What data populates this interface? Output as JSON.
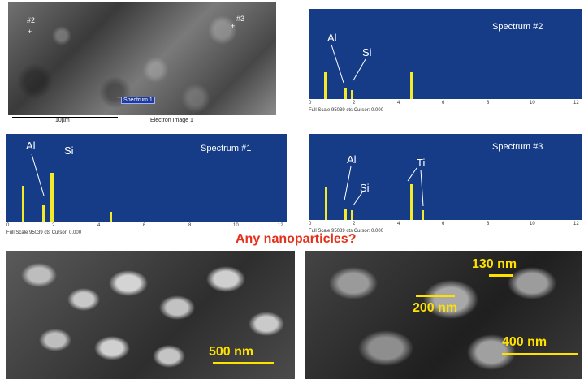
{
  "sem_overview": {
    "markers": [
      "#2",
      "#3"
    ],
    "spectrum_label": "Spectrum 1",
    "scale_label": "10µm",
    "footer_label": "Electron Image 1"
  },
  "spectra": [
    {
      "id": "spectrum-2",
      "title": "Spectrum #2",
      "elements": [
        "Al",
        "Si"
      ],
      "footer": "Full Scale 95039 cts Cursor: 0.000",
      "axis": [
        "0",
        "2",
        "4",
        "6",
        "8",
        "10",
        "12"
      ]
    },
    {
      "id": "spectrum-1",
      "title": "Spectrum #1",
      "elements": [
        "Al",
        "Si"
      ],
      "footer": "Full Scale 95039 cts Cursor: 0.000",
      "axis": [
        "0",
        "2",
        "4",
        "6",
        "8",
        "10",
        "12"
      ]
    },
    {
      "id": "spectrum-3",
      "title": "Spectrum #3",
      "elements": [
        "Al",
        "Si",
        "Ti"
      ],
      "footer": "Full Scale 95039 cts Cursor: 0.000",
      "axis": [
        "0",
        "2",
        "4",
        "6",
        "8",
        "10",
        "12"
      ]
    }
  ],
  "heading": "Any nanoparticles?",
  "sem_left": {
    "scale": "500 nm"
  },
  "sem_right": {
    "scales": [
      "130 nm",
      "200 nm",
      "400 nm"
    ]
  },
  "colors": {
    "spectrum_bg": "#163c87",
    "peak": "#f2ea2a",
    "heading": "#e4311c",
    "scalebar": "#ffe100"
  }
}
